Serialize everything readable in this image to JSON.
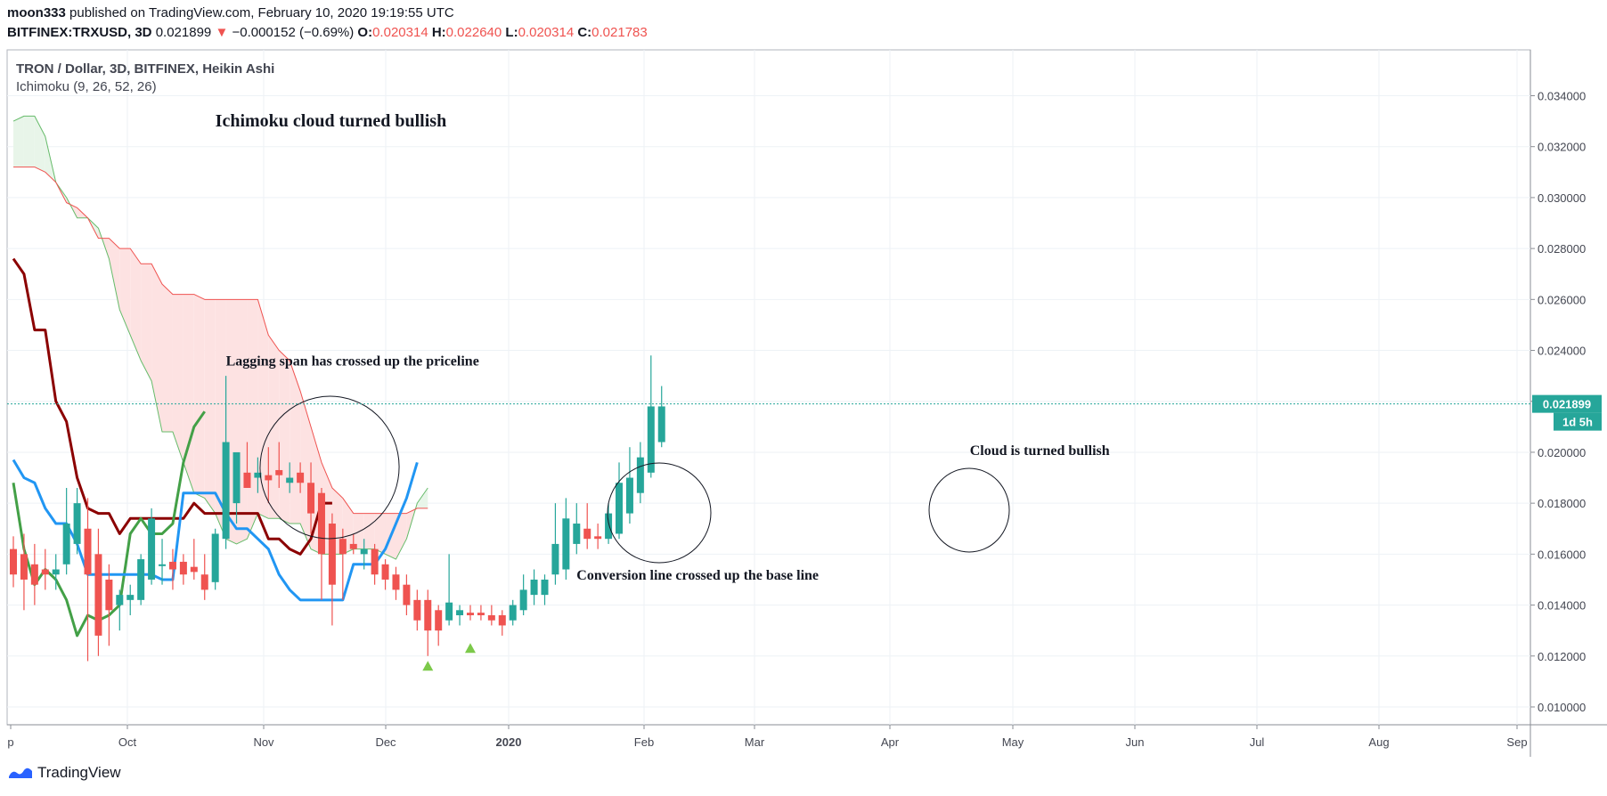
{
  "header": {
    "author": "moon333",
    "published_text": "published on TradingView.com, February 10, 2020 19:19:55 UTC",
    "symbol": "BITFINEX:TRXUSD, 3D",
    "last": "0.021899",
    "change": "−0.000152 (−0.69%)",
    "o_label": "O:",
    "o_value": "0.020314",
    "h_label": "H:",
    "h_value": "0.022640",
    "l_label": "L:",
    "l_value": "0.020314",
    "c_label": "C:",
    "c_value": "0.021783"
  },
  "legend": {
    "title": "TRON / Dollar, 3D, BITFINEX, Heikin Ashi",
    "indicator": "Ichimoku (9, 26, 52, 26)"
  },
  "price_badge": {
    "value": "0.021899",
    "countdown": "1d 5h"
  },
  "footer": {
    "brand": "TradingView"
  },
  "colors": {
    "bull_candle": "#26a69a",
    "bear_candle": "#ef5350",
    "conversion": "#2196f3",
    "base": "#8b0000",
    "lagging": "#43a047",
    "cloud_bull": "#e8f5e9",
    "cloud_bear": "#fde2e2",
    "price_line": "#26a69a"
  },
  "chart_data": {
    "type": "candlestick",
    "title": "TRON / Dollar, 3D, BITFINEX, Heikin Ashi",
    "x_ticks": [
      "p",
      "Oct",
      "Nov",
      "Dec",
      "2020",
      "Feb",
      "Mar",
      "Apr",
      "May",
      "Jun",
      "Jul",
      "Aug",
      "Sep"
    ],
    "y_ticks": [
      "0.034000",
      "0.032000",
      "0.030000",
      "0.028000",
      "0.026000",
      "0.024000",
      "0.022000",
      "0.020000",
      "0.018000",
      "0.016000",
      "0.014000",
      "0.012000",
      "0.010000"
    ],
    "ylim": [
      0.0093,
      0.0358
    ],
    "candles": [
      {
        "o": 0.0162,
        "h": 0.0167,
        "l": 0.0147,
        "c": 0.0152
      },
      {
        "o": 0.016,
        "h": 0.0168,
        "l": 0.0138,
        "c": 0.015
      },
      {
        "o": 0.0156,
        "h": 0.0164,
        "l": 0.014,
        "c": 0.0148
      },
      {
        "o": 0.0154,
        "h": 0.0162,
        "l": 0.0146,
        "c": 0.0152
      },
      {
        "o": 0.0152,
        "h": 0.016,
        "l": 0.0146,
        "c": 0.0154
      },
      {
        "o": 0.0156,
        "h": 0.0186,
        "l": 0.0152,
        "c": 0.0172
      },
      {
        "o": 0.0164,
        "h": 0.0186,
        "l": 0.016,
        "c": 0.018
      },
      {
        "o": 0.017,
        "h": 0.0182,
        "l": 0.0118,
        "c": 0.0152
      },
      {
        "o": 0.016,
        "h": 0.017,
        "l": 0.012,
        "c": 0.0128
      },
      {
        "o": 0.015,
        "h": 0.0156,
        "l": 0.0124,
        "c": 0.0138
      },
      {
        "o": 0.014,
        "h": 0.0146,
        "l": 0.013,
        "c": 0.0144
      },
      {
        "o": 0.0142,
        "h": 0.0148,
        "l": 0.0136,
        "c": 0.0144
      },
      {
        "o": 0.0142,
        "h": 0.016,
        "l": 0.014,
        "c": 0.0158
      },
      {
        "o": 0.015,
        "h": 0.0178,
        "l": 0.0148,
        "c": 0.0174
      },
      {
        "o": 0.0156,
        "h": 0.0166,
        "l": 0.0148,
        "c": 0.0156
      },
      {
        "o": 0.0157,
        "h": 0.0162,
        "l": 0.0146,
        "c": 0.0154
      },
      {
        "o": 0.0157,
        "h": 0.016,
        "l": 0.0148,
        "c": 0.0152
      },
      {
        "o": 0.0155,
        "h": 0.0166,
        "l": 0.015,
        "c": 0.0153
      },
      {
        "o": 0.0152,
        "h": 0.016,
        "l": 0.0142,
        "c": 0.0146
      },
      {
        "o": 0.0149,
        "h": 0.017,
        "l": 0.0146,
        "c": 0.0168
      },
      {
        "o": 0.0166,
        "h": 0.023,
        "l": 0.0162,
        "c": 0.0204
      },
      {
        "o": 0.018,
        "h": 0.0198,
        "l": 0.0172,
        "c": 0.02
      },
      {
        "o": 0.0192,
        "h": 0.0204,
        "l": 0.0186,
        "c": 0.0186
      },
      {
        "o": 0.019,
        "h": 0.0198,
        "l": 0.0184,
        "c": 0.0192
      },
      {
        "o": 0.0191,
        "h": 0.0202,
        "l": 0.018,
        "c": 0.0189
      },
      {
        "o": 0.0193,
        "h": 0.0204,
        "l": 0.0186,
        "c": 0.0191
      },
      {
        "o": 0.0188,
        "h": 0.0196,
        "l": 0.0184,
        "c": 0.019
      },
      {
        "o": 0.0192,
        "h": 0.0196,
        "l": 0.0184,
        "c": 0.0188
      },
      {
        "o": 0.0188,
        "h": 0.0196,
        "l": 0.0168,
        "c": 0.0176
      },
      {
        "o": 0.0184,
        "h": 0.0186,
        "l": 0.0142,
        "c": 0.016
      },
      {
        "o": 0.0172,
        "h": 0.0176,
        "l": 0.0132,
        "c": 0.0148
      },
      {
        "o": 0.0166,
        "h": 0.017,
        "l": 0.0142,
        "c": 0.016
      },
      {
        "o": 0.0164,
        "h": 0.0168,
        "l": 0.016,
        "c": 0.0162
      },
      {
        "o": 0.016,
        "h": 0.0166,
        "l": 0.0154,
        "c": 0.0162
      },
      {
        "o": 0.0162,
        "h": 0.0164,
        "l": 0.0148,
        "c": 0.0152
      },
      {
        "o": 0.0156,
        "h": 0.0158,
        "l": 0.0146,
        "c": 0.015
      },
      {
        "o": 0.0152,
        "h": 0.0155,
        "l": 0.0142,
        "c": 0.0146
      },
      {
        "o": 0.0148,
        "h": 0.0152,
        "l": 0.0136,
        "c": 0.014
      },
      {
        "o": 0.0142,
        "h": 0.0146,
        "l": 0.013,
        "c": 0.0134
      },
      {
        "o": 0.0142,
        "h": 0.0146,
        "l": 0.012,
        "c": 0.013
      },
      {
        "o": 0.0138,
        "h": 0.014,
        "l": 0.0124,
        "c": 0.013
      },
      {
        "o": 0.0134,
        "h": 0.016,
        "l": 0.0132,
        "c": 0.0141
      },
      {
        "o": 0.0136,
        "h": 0.014,
        "l": 0.0132,
        "c": 0.0138
      },
      {
        "o": 0.0137,
        "h": 0.014,
        "l": 0.0134,
        "c": 0.0136
      },
      {
        "o": 0.0137,
        "h": 0.014,
        "l": 0.0134,
        "c": 0.0136
      },
      {
        "o": 0.0136,
        "h": 0.014,
        "l": 0.0132,
        "c": 0.0134
      },
      {
        "o": 0.0136,
        "h": 0.0138,
        "l": 0.0128,
        "c": 0.0132
      },
      {
        "o": 0.0134,
        "h": 0.0142,
        "l": 0.0132,
        "c": 0.014
      },
      {
        "o": 0.0138,
        "h": 0.0152,
        "l": 0.0136,
        "c": 0.0146
      },
      {
        "o": 0.0144,
        "h": 0.0154,
        "l": 0.014,
        "c": 0.015
      },
      {
        "o": 0.0144,
        "h": 0.0152,
        "l": 0.014,
        "c": 0.015
      },
      {
        "o": 0.0152,
        "h": 0.018,
        "l": 0.0148,
        "c": 0.0164
      },
      {
        "o": 0.0154,
        "h": 0.0182,
        "l": 0.015,
        "c": 0.0174
      },
      {
        "o": 0.0164,
        "h": 0.018,
        "l": 0.016,
        "c": 0.0172
      },
      {
        "o": 0.017,
        "h": 0.018,
        "l": 0.0162,
        "c": 0.0166
      },
      {
        "o": 0.0167,
        "h": 0.0172,
        "l": 0.0162,
        "c": 0.0166
      },
      {
        "o": 0.0166,
        "h": 0.018,
        "l": 0.0164,
        "c": 0.0176
      },
      {
        "o": 0.0168,
        "h": 0.0196,
        "l": 0.0166,
        "c": 0.0188
      },
      {
        "o": 0.0176,
        "h": 0.0202,
        "l": 0.0172,
        "c": 0.019
      },
      {
        "o": 0.0184,
        "h": 0.0204,
        "l": 0.018,
        "c": 0.0198
      },
      {
        "o": 0.0192,
        "h": 0.0238,
        "l": 0.019,
        "c": 0.0218
      },
      {
        "o": 0.0204,
        "h": 0.0226,
        "l": 0.0202,
        "c": 0.0218
      }
    ],
    "conversion_line": [
      0.0197,
      0.019,
      0.0188,
      0.0178,
      0.0172,
      0.0172,
      0.0164,
      0.0152,
      0.0152,
      0.0152,
      0.0152,
      0.0152,
      0.0152,
      0.0152,
      0.015,
      0.015,
      0.0184,
      0.0184,
      0.0184,
      0.0184,
      0.0176,
      0.017,
      0.017,
      0.0166,
      0.0162,
      0.0152,
      0.0146,
      0.0142,
      0.0142,
      0.0142,
      0.0142,
      0.0142,
      0.0156,
      0.0156,
      0.0156,
      0.0162,
      0.0172,
      0.0182,
      0.0196
    ],
    "base_line": [
      0.0276,
      0.027,
      0.0248,
      0.0248,
      0.022,
      0.0212,
      0.019,
      0.0178,
      0.0176,
      0.0176,
      0.0168,
      0.0174,
      0.0174,
      0.0174,
      0.0174,
      0.0174,
      0.0174,
      0.018,
      0.0176,
      0.0176,
      0.0176,
      0.0176,
      0.0176,
      0.0176,
      0.0166,
      0.0166,
      0.0162,
      0.016,
      0.0166,
      0.018,
      0.018
    ],
    "lagging_span": [
      0.0188,
      0.0162,
      0.0148,
      0.0154,
      0.015,
      0.0142,
      0.0128,
      0.0136,
      0.0134,
      0.0136,
      0.014,
      0.0168,
      0.0174,
      0.0168,
      0.0168,
      0.0172,
      0.0196,
      0.021,
      0.0216
    ],
    "cloud_span_a": [
      0.033,
      0.0332,
      0.0332,
      0.0324,
      0.0306,
      0.03,
      0.0292,
      0.0292,
      0.0288,
      0.0276,
      0.0256,
      0.0246,
      0.0236,
      0.0228,
      0.0208,
      0.0208,
      0.0196,
      0.0184,
      0.0182,
      0.0176,
      0.0166,
      0.0164,
      0.0166,
      0.0176,
      0.0174,
      0.0174,
      0.0172,
      0.0172,
      0.0162,
      0.016,
      0.016,
      0.016,
      0.0162,
      0.0162,
      0.0162,
      0.016,
      0.0158,
      0.0166,
      0.018,
      0.0186
    ],
    "cloud_span_b": [
      0.0312,
      0.0312,
      0.0312,
      0.031,
      0.0306,
      0.0298,
      0.0296,
      0.0292,
      0.0284,
      0.0284,
      0.028,
      0.028,
      0.0274,
      0.0274,
      0.0266,
      0.0262,
      0.0262,
      0.0262,
      0.026,
      0.026,
      0.026,
      0.026,
      0.026,
      0.026,
      0.0246,
      0.024,
      0.0236,
      0.0224,
      0.021,
      0.0196,
      0.0186,
      0.0182,
      0.0176,
      0.0176,
      0.0176,
      0.0176,
      0.0176,
      0.0176,
      0.0178,
      0.0178
    ],
    "buy_signals": [
      {
        "candle_index": 39,
        "price": 0.0116
      },
      {
        "candle_index": 43,
        "price": 0.0123
      }
    ],
    "annotations": [
      {
        "id": "title",
        "text": "Ichimoku cloud turned bullish",
        "x_index": 19,
        "price": 0.0328
      },
      {
        "id": "lagging",
        "text": "Lagging span has crossed up the priceline",
        "x_index": 20,
        "price": 0.0234
      },
      {
        "id": "conversion",
        "text": "Conversion line crossed up the base line",
        "x_index": 53,
        "price": 0.015
      },
      {
        "id": "cloud",
        "text": "Cloud is turned bullish",
        "x_index": 90,
        "price": 0.0199
      }
    ]
  }
}
